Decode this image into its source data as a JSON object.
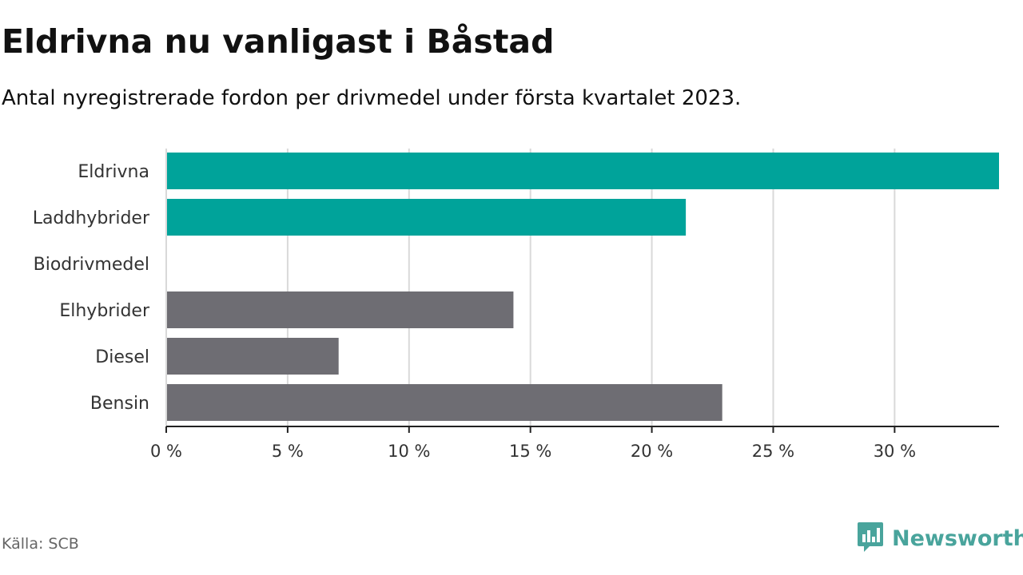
{
  "header": {
    "title": "Eldrivna nu vanligast i Båstad",
    "subtitle": "Antal nyregistrerade fordon per drivmedel under första kvartalet 2023."
  },
  "footer": {
    "source": "Källa: SCB",
    "brand": "Newsworthy",
    "brand_icon": "newsworthy-logo-icon"
  },
  "colors": {
    "highlight": "#00a39a",
    "neutral": "#6e6d73",
    "grid": "#d9d9d9",
    "brand": "#49a49c"
  },
  "chart_data": {
    "type": "bar",
    "orientation": "horizontal",
    "categories": [
      "Eldrivna",
      "Laddhybrider",
      "Biodrivmedel",
      "Elhybrider",
      "Diesel",
      "Bensin"
    ],
    "values": [
      34.3,
      21.4,
      0,
      14.3,
      7.1,
      22.9
    ],
    "bar_colors": [
      "#00a39a",
      "#00a39a",
      "#6e6d73",
      "#6e6d73",
      "#6e6d73",
      "#6e6d73"
    ],
    "xlim": [
      0,
      34.3
    ],
    "xticks": [
      0,
      5,
      10,
      15,
      20,
      25,
      30
    ],
    "xtick_labels": [
      "0 %",
      "5 %",
      "10 %",
      "15 %",
      "20 %",
      "25 %",
      "30 %"
    ],
    "grid": true,
    "xlabel": "",
    "ylabel": ""
  }
}
